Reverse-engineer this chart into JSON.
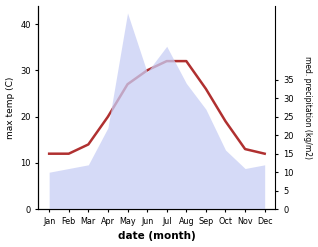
{
  "months": [
    "Jan",
    "Feb",
    "Mar",
    "Apr",
    "May",
    "Jun",
    "Jul",
    "Aug",
    "Sep",
    "Oct",
    "Nov",
    "Dec"
  ],
  "temperature": [
    12,
    12,
    14,
    20,
    27,
    30,
    32,
    32,
    26,
    19,
    13,
    12
  ],
  "precipitation": [
    10,
    11,
    12,
    22,
    53,
    37,
    44,
    34,
    27,
    16,
    11,
    12
  ],
  "temp_color": "#b03030",
  "precip_fill_color": "#c8cef5",
  "precip_alpha": 0.75,
  "temp_ylim": [
    0,
    44
  ],
  "precip_ylim": [
    0,
    55
  ],
  "temp_yticks": [
    0,
    10,
    20,
    30,
    40
  ],
  "precip_yticks": [
    0,
    5,
    10,
    15,
    20,
    25,
    30,
    35
  ],
  "precip_yticklabels": [
    "0",
    "5",
    "10",
    "15",
    "20",
    "25",
    "30",
    "35"
  ],
  "xlabel": "date (month)",
  "ylabel_left": "max temp (C)",
  "ylabel_right": "med. precipitation (kg/m2)",
  "bg_color": "#ffffff"
}
